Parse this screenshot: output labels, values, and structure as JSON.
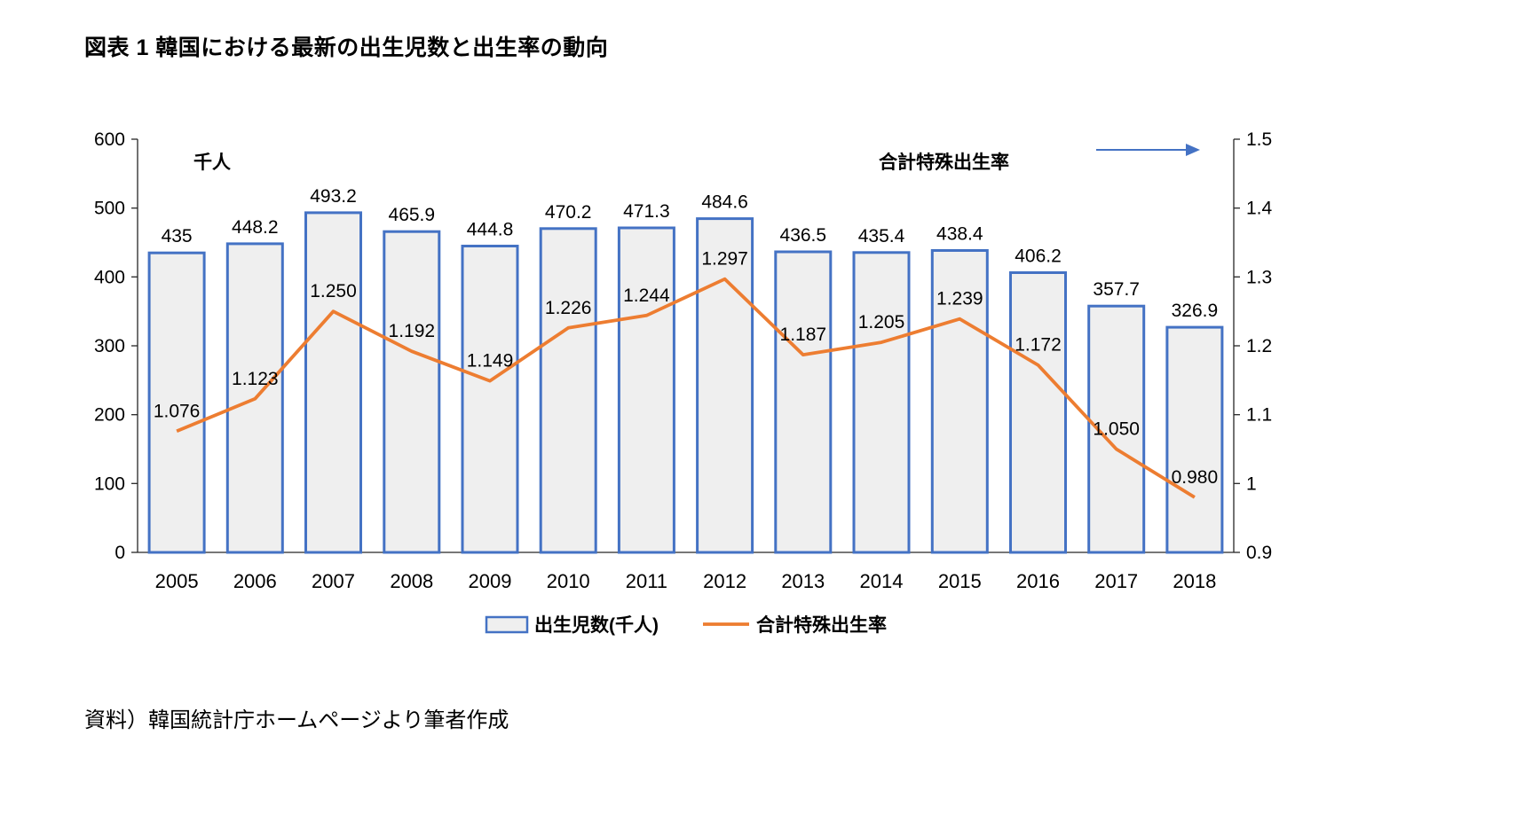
{
  "title": "図表 1 韓国における最新の出生児数と出生率の動向",
  "source_note": "資料）韓国統計庁ホームページより筆者作成",
  "chart_data": {
    "type": "bar+line",
    "categories": [
      "2005",
      "2006",
      "2007",
      "2008",
      "2009",
      "2010",
      "2011",
      "2012",
      "2013",
      "2014",
      "2015",
      "2016",
      "2017",
      "2018"
    ],
    "series": [
      {
        "name": "出生児数(千人)",
        "type": "bar",
        "axis": "left",
        "values": [
          435,
          448.2,
          493.2,
          465.9,
          444.8,
          470.2,
          471.3,
          484.6,
          436.5,
          435.4,
          438.4,
          406.2,
          357.7,
          326.9
        ],
        "labels": [
          "435",
          "448.2",
          "493.2",
          "465.9",
          "444.8",
          "470.2",
          "471.3",
          "484.6",
          "436.5",
          "435.4",
          "438.4",
          "406.2",
          "357.7",
          "326.9"
        ],
        "stroke_color": "#4472C4",
        "fill_color": "#EFEFEF"
      },
      {
        "name": "合計特殊出生率",
        "type": "line",
        "axis": "right",
        "values": [
          1.076,
          1.123,
          1.25,
          1.192,
          1.149,
          1.226,
          1.244,
          1.297,
          1.187,
          1.205,
          1.239,
          1.172,
          1.05,
          0.98
        ],
        "labels": [
          "1.076",
          "1.123",
          "1.250",
          "1.192",
          "1.149",
          "1.226",
          "1.244",
          "1.297",
          "1.187",
          "1.205",
          "1.239",
          "1.172",
          "1.050",
          "0.980"
        ],
        "color": "#ED7D31"
      }
    ],
    "left_axis": {
      "unit_label": "千人",
      "min": 0,
      "max": 600,
      "ticks": [
        "0",
        "100",
        "200",
        "300",
        "400",
        "500",
        "600"
      ]
    },
    "right_axis": {
      "title": "合計特殊出生率",
      "min": 0.9,
      "max": 1.5,
      "ticks": [
        "0.9",
        "1",
        "1.1",
        "1.2",
        "1.3",
        "1.4",
        "1.5"
      ]
    },
    "legend": [
      "出生児数(千人)",
      "合計特殊出生率"
    ],
    "grid": false,
    "legend_position": "bottom",
    "arrow_color": "#4472C4",
    "axis_color": "#262626"
  }
}
